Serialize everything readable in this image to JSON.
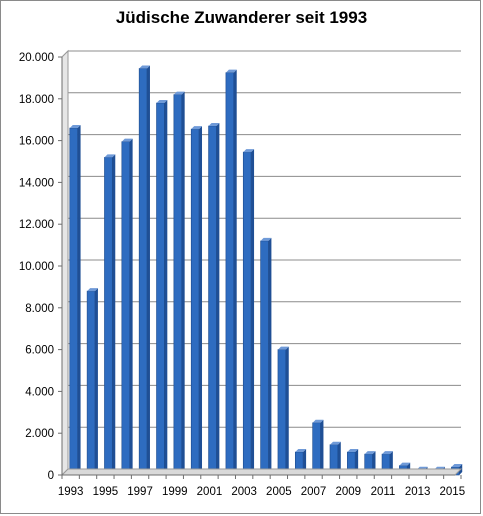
{
  "chart_data": {
    "type": "bar",
    "title": "Jüdische Zuwanderer seit 1993",
    "xlabel": "",
    "ylabel": "",
    "ylim": [
      0,
      20000
    ],
    "grid": true,
    "legend": "none",
    "bar_color": "#2e6cc0",
    "categories": [
      "1993",
      "1994",
      "1995",
      "1996",
      "1997",
      "1998",
      "1999",
      "2000",
      "2001",
      "2002",
      "2003",
      "2004",
      "2005",
      "2006",
      "2007",
      "2008",
      "2009",
      "2010",
      "2011",
      "2012",
      "2013",
      "2014",
      "2015"
    ],
    "x_tick_labels": [
      "1993",
      "1995",
      "1997",
      "1999",
      "2001",
      "2003",
      "2005",
      "2007",
      "2009",
      "2011",
      "2013",
      "2015"
    ],
    "y_tick_labels": [
      "0",
      "2.000",
      "4.000",
      "6.000",
      "8.000",
      "10.000",
      "12.000",
      "14.000",
      "16.000",
      "18.000",
      "20.000"
    ],
    "values": [
      16600,
      8800,
      15200,
      15950,
      19450,
      17800,
      18200,
      16550,
      16700,
      19250,
      15450,
      11200,
      6000,
      1100,
      2500,
      1450,
      1100,
      1000,
      1000,
      450,
      250,
      250,
      380
    ]
  }
}
